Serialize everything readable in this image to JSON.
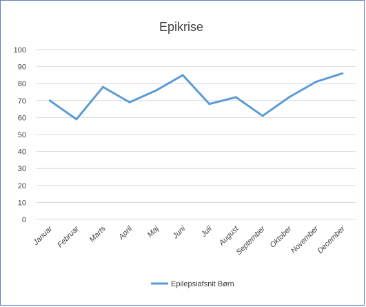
{
  "chart_data": {
    "type": "line",
    "title": "Epikrise",
    "categories": [
      "Januar",
      "Februar",
      "Marts",
      "April",
      "Maj",
      "Juni",
      "Juli",
      "August",
      "September",
      "Oktober",
      "November",
      "December"
    ],
    "series": [
      {
        "name": "Epilepsiafsnit Børn",
        "values": [
          70,
          59,
          78,
          69,
          76,
          85,
          68,
          72,
          61,
          72,
          81,
          86
        ]
      }
    ],
    "ylim": [
      0,
      100
    ],
    "yticks": [
      0,
      10,
      20,
      30,
      40,
      50,
      60,
      70,
      80,
      90,
      100
    ],
    "grid": true,
    "legend": "bottom",
    "colors": {
      "series": "#5b9bd5",
      "grid": "#d9d9d9",
      "frame": "#5b7fc2",
      "text": "#404040"
    }
  }
}
